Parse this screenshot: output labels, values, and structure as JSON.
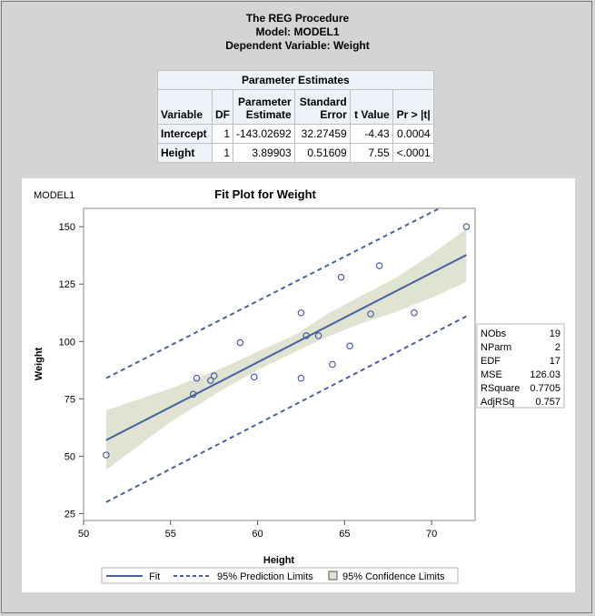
{
  "titles": {
    "line1": "The REG Procedure",
    "line2": "Model: MODEL1",
    "line3": "Dependent Variable: Weight"
  },
  "param_table": {
    "caption": "Parameter Estimates",
    "headers": {
      "variable": "Variable",
      "df": "DF",
      "estimate": [
        "Parameter",
        "Estimate"
      ],
      "stderr": [
        "Standard",
        "Error"
      ],
      "tvalue": "t Value",
      "p": "Pr > |t|"
    },
    "rows": [
      {
        "variable": "Intercept",
        "df": "1",
        "estimate": "-143.02692",
        "stderr": "32.27459",
        "tvalue": "-4.43",
        "p": "0.0004"
      },
      {
        "variable": "Height",
        "df": "1",
        "estimate": "3.89903",
        "stderr": "0.51609",
        "tvalue": "7.55",
        "p": "<.0001"
      }
    ]
  },
  "stats_box": [
    {
      "label": "NObs",
      "value": "19"
    },
    {
      "label": "NParm",
      "value": "2"
    },
    {
      "label": "EDF",
      "value": "17"
    },
    {
      "label": "MSE",
      "value": "126.03"
    },
    {
      "label": "RSquare",
      "value": "0.7705"
    },
    {
      "label": "AdjRSq",
      "value": "0.757"
    }
  ],
  "legend": {
    "fit": "Fit",
    "prediction": "95% Prediction Limits",
    "confidence": "95% Confidence Limits"
  },
  "colors": {
    "fit": "#4a5fa0",
    "points": "#4a5fa0",
    "band": "#dfe4d2"
  },
  "chart_data": {
    "type": "scatter",
    "title": "Fit Plot for Weight",
    "model_label": "MODEL1",
    "xlabel": "Height",
    "ylabel": "Weight",
    "xlim": [
      50,
      72.5
    ],
    "ylim": [
      22,
      158
    ],
    "xticks": [
      50,
      55,
      60,
      65,
      70
    ],
    "yticks": [
      25,
      50,
      75,
      100,
      125,
      150
    ],
    "grid": false,
    "legend_position": "bottom",
    "points": [
      {
        "x": 51.3,
        "y": 50.5
      },
      {
        "x": 56.3,
        "y": 77.0
      },
      {
        "x": 56.5,
        "y": 84.0
      },
      {
        "x": 57.3,
        "y": 83.0
      },
      {
        "x": 57.5,
        "y": 85.0
      },
      {
        "x": 59.0,
        "y": 99.5
      },
      {
        "x": 59.8,
        "y": 84.5
      },
      {
        "x": 62.5,
        "y": 112.5
      },
      {
        "x": 62.5,
        "y": 84.0
      },
      {
        "x": 62.8,
        "y": 102.5
      },
      {
        "x": 63.5,
        "y": 102.5
      },
      {
        "x": 64.3,
        "y": 90.0
      },
      {
        "x": 64.8,
        "y": 128.0
      },
      {
        "x": 65.3,
        "y": 98.0
      },
      {
        "x": 66.5,
        "y": 112.0
      },
      {
        "x": 67.0,
        "y": 133.0
      },
      {
        "x": 69.0,
        "y": 112.5
      },
      {
        "x": 72.0,
        "y": 150.0
      }
    ],
    "fit": {
      "intercept": -143.02692,
      "slope": 3.89903
    },
    "conf_band": {
      "x": [
        51.3,
        55,
        58,
        60,
        62.3,
        64,
        66,
        68,
        70,
        72
      ],
      "lower": [
        44,
        65,
        79,
        87.5,
        96,
        102,
        108,
        113,
        119,
        126
      ],
      "upper": [
        70,
        79.5,
        88.5,
        95.5,
        103.5,
        112,
        120,
        128,
        138,
        149
      ]
    },
    "pred_lower": {
      "x": [
        51.3,
        72
      ],
      "y": [
        30,
        111
      ]
    },
    "pred_upper": {
      "x": [
        51.3,
        72
      ],
      "y": [
        84,
        164
      ]
    }
  }
}
